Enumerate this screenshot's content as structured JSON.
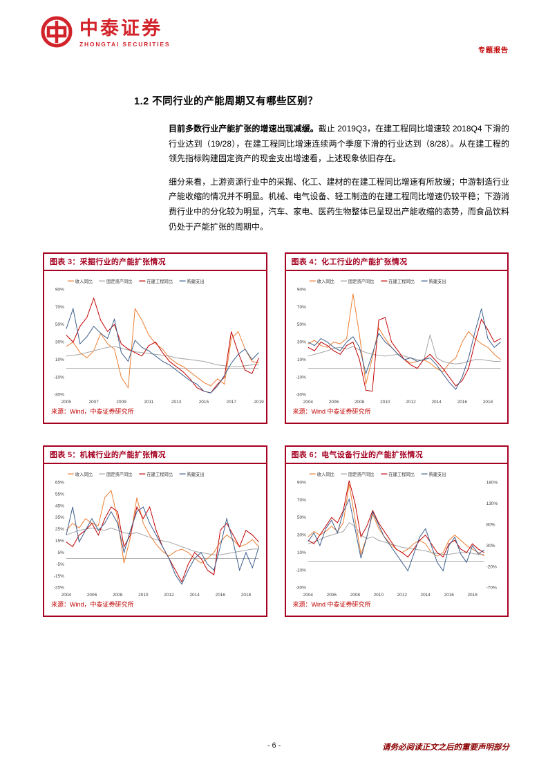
{
  "brand": {
    "name_cn": "中泰证券",
    "name_en": "ZHONGTAI SECURITIES",
    "logo_color": "#D2232A"
  },
  "page": {
    "report_type": "专题报告",
    "page_number": "- 6 -",
    "footer_notice": "请务必阅读正文之后的重要声明部分"
  },
  "section": {
    "heading": "1.2 不同行业的产能周期又有哪些区别？",
    "para1_bold": "目前多数行业产能扩张的增速出现减缓。",
    "para1_rest": "截止 2019Q3，在建工程同比增速较 2018Q4 下滑的行业达到（19/28），在建工程同比增速连续两个季度下滑的行业达到（8/28）。从在建工程的领先指标购建固定资产的现金支出增速看，上述现象依旧存在。",
    "para2": "细分来看，上游资源行业中的采掘、化工、建材的在建工程同比增速有所放缓；中游制造行业产能收缩的情况并不明显。机械、电气设备、轻工制造的在建工程同比增速仍较平稳；下游消费行业中的分化较为明显，汽车、家电、医药生物整体已呈现出产能收缩的态势，而食品饮料仍处于产能扩张的周期中。"
  },
  "figures": [
    {
      "title": "图表 3：采掘行业的产能扩张情况",
      "source": "来源：Wind，中泰证券研究所"
    },
    {
      "title": "图表 4：化工行业的产能扩张情况",
      "source": "来源：Wind 中泰证券研究所"
    },
    {
      "title": "图表 5：机械行业的产能扩张情况",
      "source": "来源：Wind，中泰证券研究所"
    },
    {
      "title": "图表 6：电气设备行业的产能扩张情况",
      "source": "来源：Wind 中泰证券研究所"
    }
  ],
  "chart_data": [
    {
      "type": "line",
      "title": "采掘行业的产能扩张情况",
      "x_range": [
        2005,
        2019
      ],
      "x_ticks": [
        2005,
        2007,
        2009,
        2011,
        2013,
        2015,
        2017,
        2019
      ],
      "y_range": [
        -30,
        90
      ],
      "y_ticks": [
        90,
        70,
        50,
        30,
        10,
        -10,
        -30
      ],
      "legend_position": "top",
      "series": [
        {
          "name": "收入同比",
          "color": "#ED7D31",
          "values": [
            25,
            30,
            18,
            12,
            20,
            40,
            28,
            22,
            -10,
            -22,
            68,
            55,
            38,
            28,
            22,
            12,
            6,
            2,
            -4,
            -10,
            -16,
            -20,
            -12,
            -18,
            34,
            42,
            22,
            8,
            6
          ]
        },
        {
          "name": "固定资产同比",
          "color": "#A5A5A5",
          "values": [
            14,
            15,
            16,
            18,
            20,
            22,
            24,
            25,
            23,
            21,
            19,
            18,
            17,
            16,
            15,
            14,
            12,
            11,
            10,
            9,
            8,
            6,
            4,
            3,
            2,
            2,
            3,
            4,
            4
          ]
        },
        {
          "name": "在建工程同比",
          "color": "#C00000",
          "values": [
            38,
            30,
            48,
            58,
            80,
            55,
            42,
            50,
            28,
            22,
            18,
            14,
            26,
            30,
            18,
            8,
            2,
            -4,
            -12,
            -22,
            -26,
            -28,
            -18,
            -10,
            42,
            18,
            -2,
            -6,
            12
          ]
        },
        {
          "name": "购建支出",
          "color": "#3D5E8C",
          "values": [
            45,
            68,
            28,
            36,
            48,
            40,
            34,
            56,
            18,
            8,
            32,
            24,
            20,
            14,
            8,
            4,
            -2,
            -8,
            -14,
            -18,
            -26,
            -28,
            -20,
            -8,
            6,
            16,
            22,
            10,
            18
          ]
        }
      ]
    },
    {
      "type": "line",
      "title": "化工行业的产能扩张情况",
      "x_range": [
        2004,
        2019
      ],
      "x_ticks": [
        2004,
        2006,
        2008,
        2010,
        2012,
        2014,
        2016,
        2018
      ],
      "y_range": [
        -30,
        90
      ],
      "y_ticks": [
        90,
        70,
        50,
        30,
        10,
        -10,
        -30
      ],
      "legend_position": "top",
      "series": [
        {
          "name": "收入同比",
          "color": "#ED7D31",
          "values": [
            28,
            32,
            26,
            24,
            30,
            28,
            34,
            85,
            38,
            -18,
            12,
            46,
            34,
            24,
            16,
            10,
            6,
            8,
            10,
            6,
            0,
            -4,
            6,
            12,
            30,
            42,
            34,
            28,
            24,
            16,
            10
          ]
        },
        {
          "name": "固定资产同比",
          "color": "#A5A5A5",
          "values": [
            14,
            16,
            18,
            20,
            23,
            24,
            22,
            25,
            21,
            18,
            16,
            15,
            14,
            15,
            16,
            14,
            12,
            10,
            9,
            38,
            12,
            8,
            6,
            5,
            6,
            8,
            10,
            10,
            9,
            8,
            8
          ]
        },
        {
          "name": "在建工程同比",
          "color": "#C00000",
          "values": [
            24,
            20,
            30,
            26,
            20,
            16,
            26,
            30,
            10,
            -25,
            -26,
            55,
            58,
            30,
            20,
            10,
            4,
            0,
            10,
            16,
            8,
            0,
            -10,
            -20,
            -14,
            0,
            30,
            56,
            44,
            30,
            34
          ]
        },
        {
          "name": "购建支出",
          "color": "#3D5E8C",
          "values": [
            30,
            26,
            34,
            30,
            24,
            20,
            30,
            36,
            24,
            -6,
            16,
            40,
            30,
            24,
            16,
            10,
            12,
            8,
            10,
            12,
            4,
            -6,
            -16,
            -24,
            -10,
            12,
            42,
            68,
            34,
            24,
            30
          ]
        }
      ]
    },
    {
      "type": "line",
      "title": "机械行业的产能扩张情况",
      "x_range": [
        2004,
        2019
      ],
      "x_ticks": [
        2004,
        2006,
        2008,
        2010,
        2012,
        2014,
        2016,
        2018
      ],
      "y_range": [
        -25,
        65
      ],
      "y_ticks": [
        65,
        55,
        45,
        35,
        25,
        15,
        5,
        -5,
        -15,
        -25
      ],
      "legend_position": "top",
      "series": [
        {
          "name": "收入同比",
          "color": "#ED7D31",
          "values": [
            24,
            30,
            26,
            34,
            30,
            28,
            52,
            58,
            34,
            -4,
            18,
            52,
            30,
            20,
            12,
            6,
            2,
            6,
            8,
            5,
            0,
            -4,
            0,
            5,
            14,
            20,
            16,
            10,
            12,
            16,
            10
          ]
        },
        {
          "name": "固定资产同比",
          "color": "#A5A5A5",
          "values": [
            20,
            22,
            24,
            25,
            26,
            25,
            24,
            26,
            24,
            22,
            21,
            22,
            20,
            18,
            16,
            15,
            14,
            12,
            10,
            8,
            6,
            5,
            4,
            3,
            3,
            4,
            5,
            6,
            7,
            8,
            8
          ]
        },
        {
          "name": "在建工程同比",
          "color": "#C00000",
          "values": [
            14,
            10,
            20,
            24,
            30,
            20,
            34,
            44,
            40,
            10,
            20,
            44,
            34,
            44,
            24,
            10,
            0,
            -10,
            -20,
            -5,
            5,
            0,
            -10,
            -14,
            24,
            30,
            20,
            10,
            24,
            20,
            14
          ]
        },
        {
          "name": "购建支出",
          "color": "#3D5E8C",
          "values": [
            20,
            44,
            14,
            24,
            34,
            24,
            30,
            40,
            30,
            5,
            24,
            40,
            44,
            30,
            20,
            10,
            0,
            -14,
            -22,
            -10,
            0,
            5,
            -5,
            -10,
            10,
            34,
            14,
            -10,
            5,
            -8,
            10
          ]
        }
      ]
    },
    {
      "type": "line",
      "title": "电气设备行业的产能扩张情况",
      "x_range": [
        2004,
        2019
      ],
      "x_ticks": [
        2004,
        2006,
        2008,
        2010,
        2012,
        2014,
        2016,
        2018
      ],
      "y_range": [
        -30,
        90
      ],
      "y_ticks": [
        90,
        70,
        50,
        30,
        10,
        -10,
        -30
      ],
      "y2_range": [
        -70,
        180
      ],
      "y2_ticks": [
        180,
        130,
        80,
        30,
        -20,
        -70
      ],
      "legend_position": "top",
      "series": [
        {
          "name": "收入同比",
          "color": "#ED7D31",
          "values": [
            28,
            34,
            30,
            34,
            40,
            34,
            44,
            88,
            48,
            8,
            28,
            54,
            38,
            28,
            20,
            14,
            10,
            14,
            20,
            24,
            20,
            10,
            6,
            10,
            24,
            30,
            24,
            18,
            14,
            10,
            6
          ]
        },
        {
          "name": "固定资产同比",
          "color": "#A5A5A5",
          "values": [
            20,
            22,
            25,
            28,
            30,
            32,
            34,
            44,
            40,
            30,
            26,
            28,
            24,
            22,
            20,
            18,
            16,
            15,
            14,
            13,
            12,
            10,
            9,
            8,
            8,
            9,
            10,
            10,
            9,
            8,
            8
          ]
        },
        {
          "name": "在建工程同比",
          "color": "#C00000",
          "values": [
            24,
            20,
            30,
            40,
            50,
            44,
            58,
            92,
            66,
            28,
            40,
            58,
            44,
            34,
            24,
            14,
            10,
            5,
            14,
            24,
            30,
            20,
            10,
            5,
            20,
            24,
            14,
            10,
            20,
            14,
            10
          ]
        },
        {
          "name": "购建支出",
          "color": "#3D5E8C",
          "axis": "y2",
          "values": [
            40,
            60,
            30,
            70,
            90,
            60,
            110,
            140,
            70,
            0,
            50,
            110,
            80,
            50,
            30,
            10,
            -10,
            -30,
            10,
            50,
            70,
            30,
            -10,
            -30,
            30,
            50,
            10,
            -10,
            30,
            10,
            20
          ]
        }
      ]
    }
  ]
}
